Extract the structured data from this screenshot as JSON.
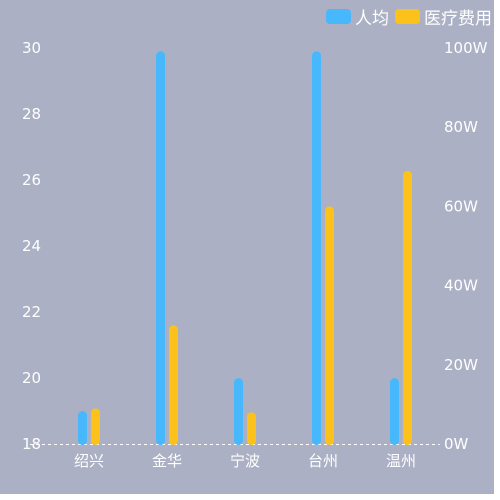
{
  "chart_data": {
    "type": "bar",
    "categories": [
      "绍兴",
      "金华",
      "宁波",
      "台州",
      "温州"
    ],
    "series": [
      {
        "name": "人均",
        "axis": "left",
        "color": "#47b8fb",
        "values": [
          19.0,
          29.9,
          20.0,
          29.9,
          20.0
        ]
      },
      {
        "name": "医疗费用",
        "axis": "right",
        "color": "#fcc21b",
        "values": [
          9,
          30,
          8,
          60,
          69
        ]
      }
    ],
    "y_left": {
      "min": 18,
      "max": 30,
      "ticks": [
        "18",
        "20",
        "22",
        "24",
        "26",
        "28",
        "30"
      ]
    },
    "y_right": {
      "min": 0,
      "max": 100,
      "ticks": [
        "0W",
        "20W",
        "40W",
        "60W",
        "80W",
        "100W"
      ]
    },
    "grid": false,
    "legend": "top-right"
  }
}
